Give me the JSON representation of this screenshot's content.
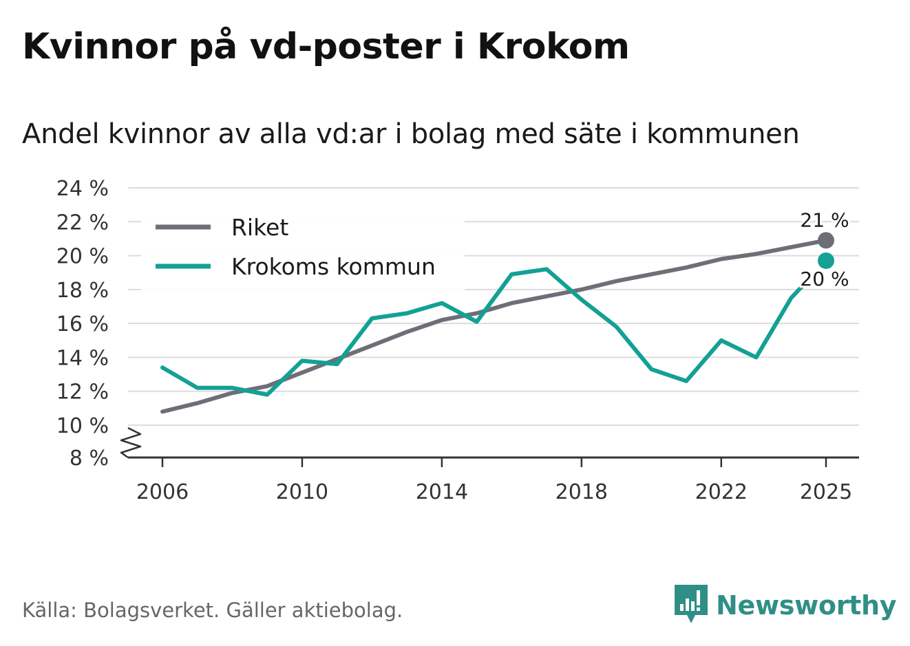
{
  "title": "Kvinnor på vd-poster i Krokom",
  "subtitle": "Andel kvinnor av alla vd:ar i bolag med säte i kommunen",
  "source": "Källa: Bolagsverket. Gäller aktiebolag.",
  "brand": "Newsworthy",
  "colors": {
    "riket": "#6f6e76",
    "krokom": "#13a095",
    "grid": "#dcdcdc",
    "axis": "#333333",
    "brand": "#2f8f86"
  },
  "chart_data": {
    "type": "line",
    "title": "Kvinnor på vd-poster i Krokom",
    "subtitle": "Andel kvinnor av alla vd:ar i bolag med säte i kommunen",
    "xlabel": "",
    "ylabel": "",
    "xlim": [
      2006,
      2025
    ],
    "ylim": [
      8,
      24
    ],
    "axis_break_below": 10,
    "x_ticks": [
      2006,
      2010,
      2014,
      2018,
      2022,
      2025
    ],
    "y_ticks": [
      {
        "value": 8,
        "label": "8 %"
      },
      {
        "value": 10,
        "label": "10 %"
      },
      {
        "value": 12,
        "label": "12 %"
      },
      {
        "value": 14,
        "label": "14 %"
      },
      {
        "value": 16,
        "label": "16 %"
      },
      {
        "value": 18,
        "label": "18 %"
      },
      {
        "value": 20,
        "label": "20 %"
      },
      {
        "value": 22,
        "label": "22 %"
      },
      {
        "value": 24,
        "label": "24 %"
      }
    ],
    "grid": true,
    "legend_position": "top-left",
    "x": [
      2006,
      2007,
      2008,
      2009,
      2010,
      2011,
      2012,
      2013,
      2014,
      2015,
      2016,
      2017,
      2018,
      2019,
      2020,
      2021,
      2022,
      2023,
      2024,
      2025
    ],
    "series": [
      {
        "name": "Riket",
        "color": "#6f6e76",
        "values": [
          10.8,
          11.3,
          11.9,
          12.3,
          13.1,
          13.9,
          14.7,
          15.5,
          16.2,
          16.6,
          17.2,
          17.6,
          18.0,
          18.5,
          18.9,
          19.3,
          19.8,
          20.1,
          20.5,
          20.9
        ],
        "end_label": "21 %"
      },
      {
        "name": "Krokoms kommun",
        "color": "#13a095",
        "values": [
          13.4,
          12.2,
          12.2,
          11.8,
          13.8,
          13.6,
          16.3,
          16.6,
          17.2,
          16.1,
          18.9,
          19.2,
          17.4,
          15.8,
          13.3,
          12.6,
          15.0,
          14.0,
          17.5,
          19.7
        ],
        "end_label": "20 %"
      }
    ]
  }
}
